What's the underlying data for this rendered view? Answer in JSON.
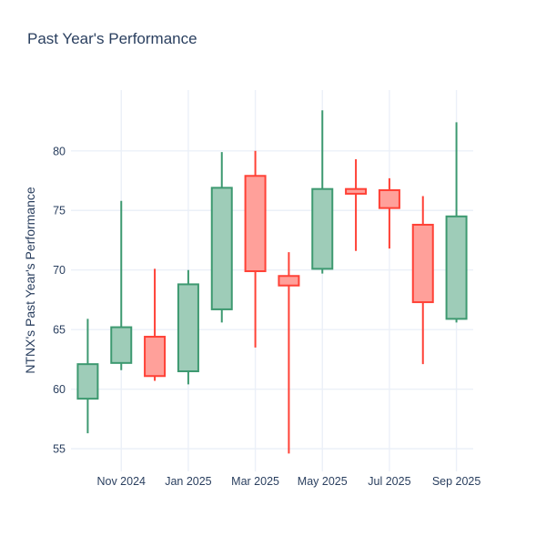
{
  "title": "Past Year's Performance",
  "chart_data": {
    "type": "candlestick",
    "title": "Past Year's Performance",
    "xlabel": "",
    "ylabel": "NTNX's Past Year's Performance",
    "legend": "none",
    "grid": true,
    "ylim": [
      53.1,
      85.1
    ],
    "y_ticks": [
      55,
      60,
      65,
      70,
      75,
      80
    ],
    "x_tick_labels": [
      {
        "index": 1,
        "label": "Nov 2024"
      },
      {
        "index": 3,
        "label": "Jan 2025"
      },
      {
        "index": 5,
        "label": "Mar 2025"
      },
      {
        "index": 7,
        "label": "May 2025"
      },
      {
        "index": 9,
        "label": "Jul 2025"
      },
      {
        "index": 11,
        "label": "Sep 2025"
      }
    ],
    "points": [
      {
        "month": "Oct 2024",
        "open": 59.2,
        "high": 65.9,
        "low": 56.3,
        "close": 62.1
      },
      {
        "month": "Nov 2024",
        "open": 62.2,
        "high": 75.8,
        "low": 61.6,
        "close": 65.2
      },
      {
        "month": "Dec 2024",
        "open": 64.4,
        "high": 70.1,
        "low": 60.7,
        "close": 61.1
      },
      {
        "month": "Jan 2025",
        "open": 61.5,
        "high": 70.0,
        "low": 60.4,
        "close": 68.8
      },
      {
        "month": "Feb 2025",
        "open": 66.7,
        "high": 79.9,
        "low": 65.6,
        "close": 76.9
      },
      {
        "month": "Mar 2025",
        "open": 77.9,
        "high": 80.0,
        "low": 63.5,
        "close": 69.9
      },
      {
        "month": "Apr 2025",
        "open": 69.5,
        "high": 71.5,
        "low": 54.6,
        "close": 68.7
      },
      {
        "month": "May 2025",
        "open": 70.1,
        "high": 83.4,
        "low": 69.7,
        "close": 76.8
      },
      {
        "month": "Jun 2025",
        "open": 76.8,
        "high": 79.3,
        "low": 71.6,
        "close": 76.4
      },
      {
        "month": "Jul 2025",
        "open": 76.7,
        "high": 77.7,
        "low": 71.8,
        "close": 75.2
      },
      {
        "month": "Aug 2025",
        "open": 73.8,
        "high": 76.2,
        "low": 62.1,
        "close": 67.3
      },
      {
        "month": "Sep 2025",
        "open": 65.9,
        "high": 82.4,
        "low": 65.6,
        "close": 74.5
      }
    ],
    "colors": {
      "increasing_line": "#3d9970",
      "increasing_fill": "#9eccb8",
      "decreasing_line": "#ff4136",
      "decreasing_fill": "#ffa09a",
      "grid": "#ebf0f8",
      "text": "#2a3f5f",
      "background": "#ffffff"
    }
  }
}
